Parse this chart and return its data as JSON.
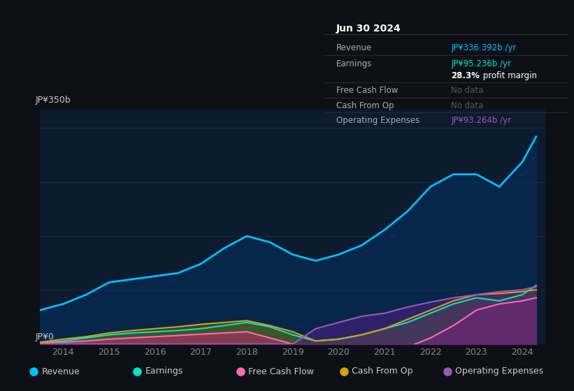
{
  "bg_color": "#0d1117",
  "plot_bg_color": "#0d1b2e",
  "grid_color": "#1e2d3d",
  "ylabel_text": "JP¥350b",
  "y0_text": "JP¥0",
  "years": [
    2013.5,
    2014.0,
    2014.5,
    2015.0,
    2015.5,
    2016.0,
    2016.5,
    2017.0,
    2017.5,
    2018.0,
    2018.5,
    2019.0,
    2019.5,
    2020.0,
    2020.5,
    2021.0,
    2021.5,
    2022.0,
    2022.5,
    2023.0,
    2023.5,
    2024.0,
    2024.3
  ],
  "revenue": [
    55,
    65,
    80,
    100,
    105,
    110,
    115,
    130,
    155,
    175,
    165,
    145,
    135,
    145,
    160,
    185,
    215,
    255,
    275,
    275,
    255,
    295,
    336
  ],
  "earnings": [
    2,
    5,
    10,
    15,
    18,
    20,
    22,
    25,
    30,
    35,
    28,
    15,
    5,
    8,
    15,
    25,
    35,
    50,
    65,
    75,
    70,
    80,
    95
  ],
  "free_cash_flow": [
    2,
    3,
    5,
    8,
    10,
    12,
    14,
    16,
    18,
    20,
    10,
    0,
    -15,
    -25,
    -20,
    -15,
    -5,
    10,
    30,
    55,
    65,
    70,
    75
  ],
  "cash_from_op": [
    3,
    8,
    12,
    18,
    22,
    25,
    28,
    32,
    35,
    38,
    30,
    20,
    5,
    8,
    15,
    25,
    40,
    55,
    70,
    80,
    82,
    85,
    88
  ],
  "operating_expenses": [
    0,
    0,
    0,
    0,
    0,
    0,
    0,
    0,
    0,
    0,
    0,
    0,
    25,
    35,
    45,
    50,
    60,
    68,
    75,
    80,
    85,
    88,
    93
  ],
  "revenue_color": "#00bfff",
  "earnings_color": "#00e5c8",
  "fcf_color": "#ff69b4",
  "cashop_color": "#d4a017",
  "opex_color": "#9b59b6",
  "revenue_fill": "#003366",
  "earnings_fill": "#006655",
  "fcf_fill": "#cc2277",
  "cashop_fill": "#7a5800",
  "opex_fill": "#4a2080",
  "ylim": [
    0,
    380
  ],
  "xlim": [
    2013.5,
    2024.5
  ],
  "xticks": [
    2014,
    2015,
    2016,
    2017,
    2018,
    2019,
    2020,
    2021,
    2022,
    2023,
    2024
  ],
  "infobox": {
    "title": "Jun 30 2024",
    "rows": [
      {
        "label": "Revenue",
        "value": "JP¥336.392b /yr",
        "value_color": "#00bfff",
        "separator": true
      },
      {
        "label": "Earnings",
        "value": "JP¥95.236b /yr",
        "value_color": "#00e5c8",
        "separator": false
      },
      {
        "label": "",
        "value": "28.3% profit margin",
        "value_color": "#ffffff",
        "bold_part": "28.3%",
        "separator": true
      },
      {
        "label": "Free Cash Flow",
        "value": "No data",
        "value_color": "#555555",
        "separator": true
      },
      {
        "label": "Cash From Op",
        "value": "No data",
        "value_color": "#555555",
        "separator": true
      },
      {
        "label": "Operating Expenses",
        "value": "JP¥93.264b /yr",
        "value_color": "#9b59b6",
        "separator": false
      }
    ],
    "bg_color": "#0a0f18",
    "border_color": "#333333",
    "text_color": "#aaaaaa",
    "title_color": "#ffffff"
  },
  "legend": [
    {
      "label": "Revenue",
      "color": "#00bfff"
    },
    {
      "label": "Earnings",
      "color": "#00e5c8"
    },
    {
      "label": "Free Cash Flow",
      "color": "#ff69b4"
    },
    {
      "label": "Cash From Op",
      "color": "#d4a017"
    },
    {
      "label": "Operating Expenses",
      "color": "#9b59b6"
    }
  ]
}
